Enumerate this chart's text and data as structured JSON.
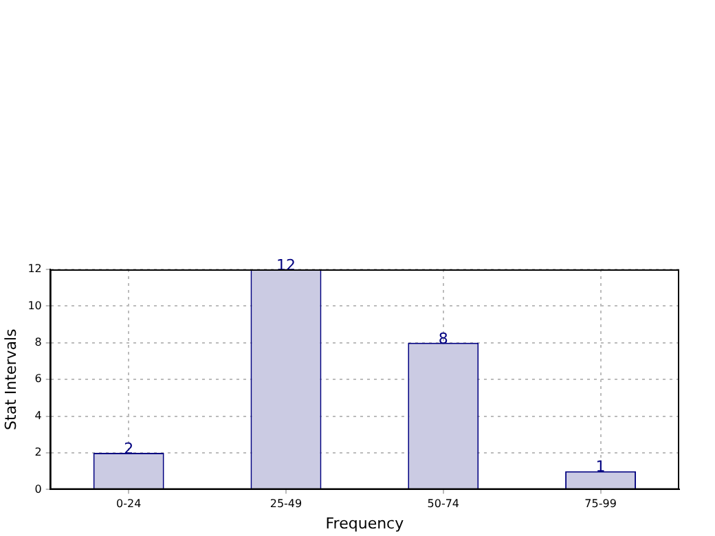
{
  "chart_data": {
    "type": "bar",
    "xlabel": "Frequency",
    "ylabel": "Stat Intervals",
    "categories": [
      "0-24",
      "25-49",
      "50-74",
      "75-99"
    ],
    "series": [
      {
        "color": "#cbcbe3",
        "values": [
          2,
          12,
          8,
          1
        ]
      }
    ],
    "ylim": [
      0,
      12
    ],
    "yticks": [
      0,
      2,
      4,
      6,
      8,
      10,
      12
    ],
    "grid": true,
    "data_labels": true,
    "legend": false
  }
}
